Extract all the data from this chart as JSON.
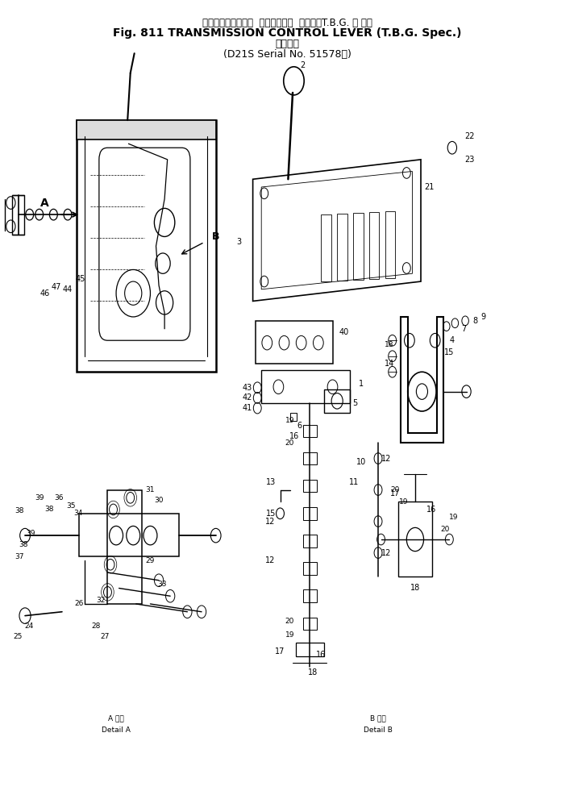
{
  "title_line1": "トランスミッション  コントロール  レバー（T.B.G. 仕 様）",
  "title_line2": "Fig. 811 TRANSMISSION CONTROL LEVER (T.B.G. Spec.)",
  "title_line3": "適用号機",
  "title_line4": "(D21S Serial No. 51578～)",
  "bg_color": "#ffffff",
  "line_color": "#000000",
  "detail_a_kanji": "詳細",
  "detail_b_kanji": "詳細"
}
